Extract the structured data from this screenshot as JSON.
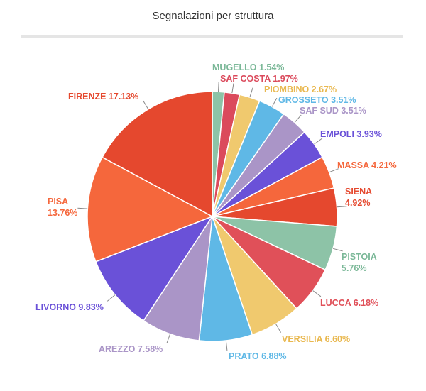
{
  "chart_data": {
    "type": "pie",
    "title": "Segnalazioni per struttura",
    "slices": [
      {
        "label": "MUGELLO",
        "value": 1.54,
        "pct_label": "1.54%",
        "color": "#8dc3a7"
      },
      {
        "label": "SAF COSTA",
        "value": 1.97,
        "pct_label": "1.97%",
        "color": "#db4a5c"
      },
      {
        "label": "PIOMBINO",
        "value": 2.67,
        "pct_label": "2.67%",
        "color": "#f0c96e"
      },
      {
        "label": "GROSSETO",
        "value": 3.51,
        "pct_label": "3.51%",
        "color": "#5fb8e6"
      },
      {
        "label": "SAF SUD",
        "value": 3.51,
        "pct_label": "3.51%",
        "color": "#aa95c7"
      },
      {
        "label": "EMPOLI",
        "value": 3.93,
        "pct_label": "3.93%",
        "color": "#6a51d8"
      },
      {
        "label": "MASSA",
        "value": 4.21,
        "pct_label": "4.21%",
        "color": "#f5673c"
      },
      {
        "label": "SIENA",
        "value": 4.92,
        "pct_label": "4.92%",
        "color": "#e5482e"
      },
      {
        "label": "PISTOIA",
        "value": 5.76,
        "pct_label": "5.76%",
        "color": "#8dc3a7"
      },
      {
        "label": "LUCCA",
        "value": 6.18,
        "pct_label": "6.18%",
        "color": "#e05059"
      },
      {
        "label": "VERSILIA",
        "value": 6.6,
        "pct_label": "6.60%",
        "color": "#f0c96e"
      },
      {
        "label": "PRATO",
        "value": 6.88,
        "pct_label": "6.88%",
        "color": "#5fb8e6"
      },
      {
        "label": "AREZZO",
        "value": 7.58,
        "pct_label": "7.58%",
        "color": "#aa95c7"
      },
      {
        "label": "LIVORNO",
        "value": 9.83,
        "pct_label": "9.83%",
        "color": "#6a51d8"
      },
      {
        "label": "PISA",
        "value": 13.76,
        "pct_label": "13.76%",
        "color": "#f5673c"
      },
      {
        "label": "FIRENZE",
        "value": 17.13,
        "pct_label": "17.13%",
        "color": "#e5482e"
      }
    ]
  }
}
